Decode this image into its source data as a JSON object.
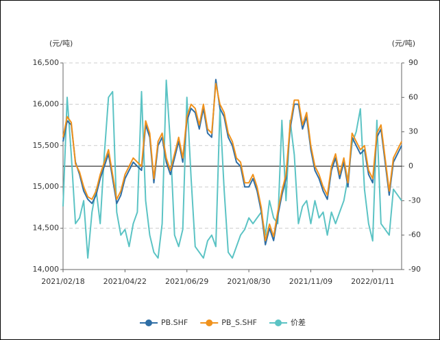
{
  "chart_data": {
    "type": "line",
    "y_label": "(元/吨)",
    "y2_label": "(元/吨)",
    "categories": [
      "2021/02/18",
      null,
      null,
      null,
      null,
      null,
      null,
      null,
      null,
      null,
      null,
      null,
      null,
      null,
      null,
      "2021/04/22",
      null,
      null,
      null,
      null,
      null,
      null,
      null,
      null,
      null,
      null,
      null,
      null,
      null,
      null,
      "2021/06/29",
      null,
      null,
      null,
      null,
      null,
      null,
      null,
      null,
      null,
      null,
      null,
      null,
      null,
      null,
      "2021/08/30",
      null,
      null,
      null,
      null,
      null,
      null,
      null,
      null,
      null,
      null,
      null,
      null,
      null,
      null,
      "2021/11/09",
      null,
      null,
      null,
      null,
      null,
      null,
      null,
      null,
      null,
      null,
      null,
      null,
      null,
      null,
      "2022/01/11",
      null,
      null,
      null,
      null,
      null,
      null,
      null
    ],
    "series": [
      {
        "name": "PB.SHF",
        "color": "#2e6ea6",
        "values": [
          15550,
          15800,
          15750,
          15300,
          15150,
          14950,
          14850,
          14800,
          14900,
          15100,
          15250,
          15400,
          15100,
          14800,
          14900,
          15100,
          15200,
          15300,
          15250,
          15200,
          15750,
          15600,
          15050,
          15500,
          15600,
          15300,
          15150,
          15350,
          15550,
          15300,
          15800,
          15950,
          15900,
          15700,
          15950,
          15650,
          15600,
          16300,
          15950,
          15850,
          15600,
          15500,
          15300,
          15250,
          15000,
          15000,
          15100,
          14950,
          14700,
          14300,
          14500,
          14350,
          14650,
          14900,
          15100,
          15700,
          16000,
          16000,
          15700,
          15850,
          15450,
          15200,
          15100,
          14950,
          14850,
          15200,
          15350,
          15100,
          15300,
          15000,
          15600,
          15500,
          15400,
          15450,
          15150,
          15050,
          15600,
          15700,
          15300,
          14900,
          15300,
          15400,
          15500
        ]
      },
      {
        "name": "PB_S.SHF",
        "color": "#f0921c",
        "values": [
          15600,
          15850,
          15780,
          15280,
          15180,
          15000,
          14880,
          14850,
          14950,
          15150,
          15300,
          15450,
          15150,
          14850,
          14950,
          15150,
          15250,
          15350,
          15300,
          15250,
          15800,
          15650,
          15100,
          15550,
          15650,
          15350,
          15200,
          15400,
          15600,
          15350,
          15850,
          16000,
          15950,
          15750,
          16000,
          15700,
          15650,
          16250,
          16000,
          15900,
          15650,
          15550,
          15350,
          15300,
          15050,
          15050,
          15150,
          15000,
          14750,
          14350,
          14550,
          14400,
          14700,
          14950,
          15150,
          15750,
          16050,
          16050,
          15750,
          15900,
          15500,
          15250,
          15150,
          15000,
          14900,
          15250,
          15400,
          15150,
          15350,
          15050,
          15650,
          15550,
          15450,
          15500,
          15200,
          15100,
          15650,
          15750,
          15350,
          14950,
          15350,
          15450,
          15550
        ]
      },
      {
        "name": "价差",
        "color": "#5bc3c4",
        "axis": "y2",
        "values": [
          -35,
          60,
          10,
          -50,
          -45,
          -30,
          -80,
          -40,
          -20,
          -50,
          10,
          60,
          65,
          -40,
          -60,
          -55,
          -70,
          -50,
          -40,
          65,
          -30,
          -60,
          -75,
          -80,
          -50,
          75,
          20,
          -60,
          -70,
          -55,
          60,
          -10,
          -70,
          -75,
          -80,
          -65,
          -60,
          -70,
          50,
          -20,
          -75,
          -80,
          -70,
          -60,
          -55,
          -45,
          -50,
          -45,
          -40,
          -60,
          -30,
          -45,
          -50,
          40,
          -30,
          40,
          10,
          -50,
          -35,
          -30,
          -50,
          -30,
          -45,
          -40,
          -60,
          -40,
          -50,
          -40,
          -30,
          -10,
          20,
          30,
          50,
          -20,
          -50,
          -65,
          40,
          -50,
          -55,
          -60,
          -20,
          -25,
          -30
        ]
      }
    ],
    "ylim": [
      14000,
      16500
    ],
    "yticks": [
      {
        "value": 14000,
        "label": "14,000"
      },
      {
        "value": 14500,
        "label": "14,500"
      },
      {
        "value": 15000,
        "label": "15,000"
      },
      {
        "value": 15500,
        "label": "15,500"
      },
      {
        "value": 16000,
        "label": "16,000"
      },
      {
        "value": 16500,
        "label": "16,500"
      }
    ],
    "y2lim": [
      -90,
      90
    ],
    "y2ticks": [
      -90,
      -60,
      -30,
      0,
      30,
      60,
      90
    ],
    "grid": true,
    "legend": "bottom"
  }
}
